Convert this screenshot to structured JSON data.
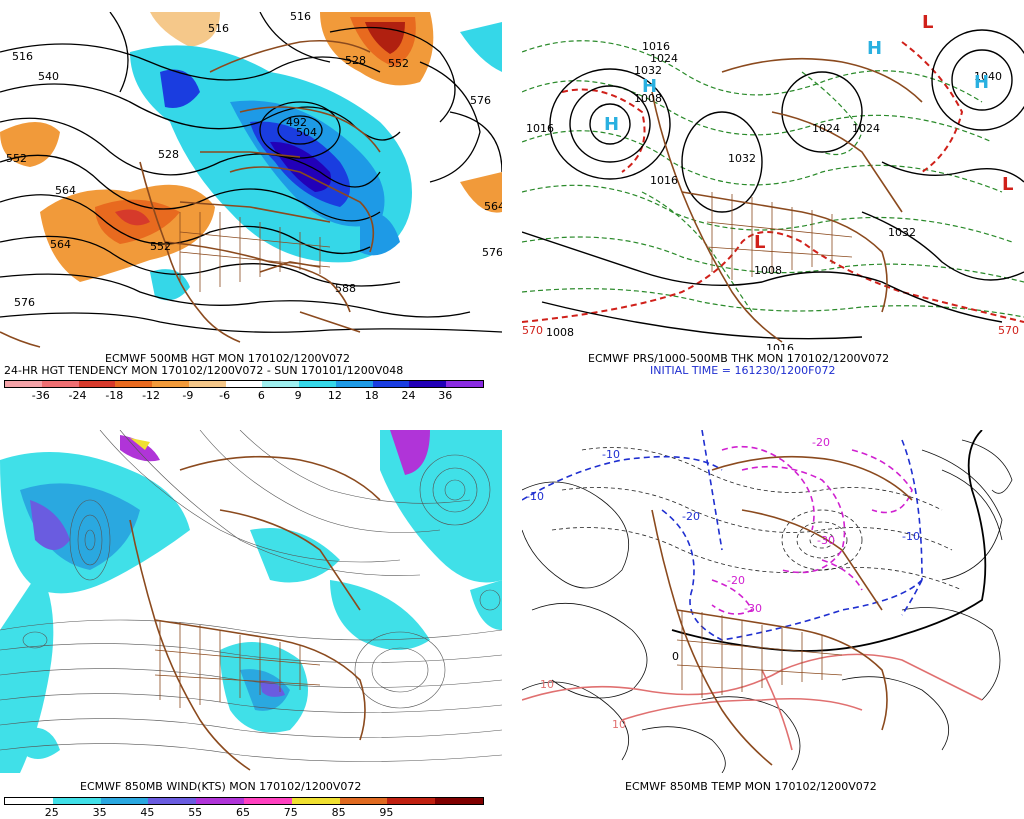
{
  "panels": [
    {
      "id": "p500",
      "title": "ECMWF 500MB HGT MON 170102/1200V072",
      "subtitle": "24-HR HGT TENDENCY MON 170102/1200V072 - SUN 170101/1200V048",
      "contour_labels": [
        "516",
        "516",
        "516",
        "528",
        "552",
        "540",
        "492",
        "504",
        "528",
        "552",
        "564",
        "564",
        "564",
        "552",
        "576",
        "576",
        "576",
        "588"
      ],
      "colorbar": {
        "colors": [
          "#f4a3a8",
          "#ee6f72",
          "#d63a2b",
          "#e86a1f",
          "#f19a3a",
          "#f5c88a",
          "#ffffff",
          "#9ff0f0",
          "#35d7e8",
          "#1e9ae6",
          "#1a3de0",
          "#2200b8",
          "#8a2be2"
        ],
        "ticks": [
          "-36",
          "-24",
          "-18",
          "-12",
          "-9",
          "-6",
          "6",
          "9",
          "12",
          "18",
          "24",
          "36"
        ]
      }
    },
    {
      "id": "pprs",
      "title": "ECMWF PRS/1000-500MB THK MON 170102/1200V072",
      "subtitle": "INITIAL TIME = 161230/1200F072",
      "contour_labels": [
        "1016",
        "1024",
        "1032",
        "1008",
        "1016",
        "1024",
        "1032",
        "1016",
        "1024",
        "1040",
        "1032",
        "1008",
        "1016",
        "1008",
        "570",
        "570"
      ],
      "highs": [
        "H",
        "H",
        "H",
        "H"
      ],
      "lows": [
        "L",
        "L",
        "L"
      ]
    },
    {
      "id": "pwind",
      "title": "ECMWF 850MB WIND(KTS) MON 170102/1200V072",
      "colorbar": {
        "colors": [
          "#ffffff",
          "#40e0e8",
          "#2aa8e0",
          "#6a5ce0",
          "#b034d8",
          "#ff40c0",
          "#f0e030",
          "#e06a20",
          "#c02010",
          "#800000"
        ],
        "ticks": [
          "25",
          "35",
          "45",
          "55",
          "65",
          "75",
          "85",
          "95"
        ]
      }
    },
    {
      "id": "ptemp",
      "title": "ECMWF 850MB TEMP MON 170102/1200V072",
      "contour_labels": [
        "-10",
        "-10",
        "-20",
        "-30",
        "-10",
        "0",
        "-20",
        "-30",
        "-20",
        "10",
        "10"
      ]
    }
  ],
  "colors": {
    "map_brown": "#8b4a1e",
    "cyan": "#2fd3e6",
    "blue": "#1f4fe0",
    "darkblue": "#1a1ac8",
    "orange": "#f08a3a",
    "red": "#d0201a",
    "green": "#2a8a2a",
    "magenta": "#d020d0"
  }
}
